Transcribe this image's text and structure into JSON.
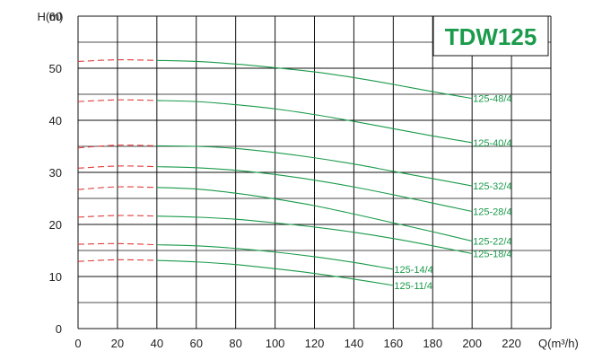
{
  "chart_data": {
    "type": "line",
    "title": "TDW125",
    "xlabel": "Q(m³/h)",
    "ylabel": "H(m)",
    "xlim": [
      0,
      240
    ],
    "ylim": [
      0,
      60
    ],
    "x_ticks": [
      "0",
      "20",
      "40",
      "60",
      "80",
      "100",
      "120",
      "140",
      "160",
      "180",
      "200",
      "220"
    ],
    "y_ticks": [
      "0",
      "10",
      "20",
      "30",
      "40",
      "50",
      "60"
    ],
    "grid": true,
    "colors": {
      "curve": "#1a9a4a",
      "dashed": "#e23c3c",
      "title": "#1a9a4a",
      "grid": "#111111"
    },
    "series": [
      {
        "name": "125-48/4",
        "dashed": [
          [
            0,
            51.3
          ],
          [
            40,
            51.5
          ]
        ],
        "x": [
          40,
          60,
          80,
          100,
          120,
          140,
          160,
          180,
          200
        ],
        "y": [
          51.5,
          51.3,
          50.8,
          50.1,
          49.3,
          48.2,
          46.9,
          45.5,
          44.2
        ]
      },
      {
        "name": "125-40/4",
        "dashed": [
          [
            0,
            43.6
          ],
          [
            40,
            43.8
          ]
        ],
        "x": [
          40,
          60,
          80,
          100,
          120,
          140,
          160,
          180,
          200
        ],
        "y": [
          43.8,
          43.6,
          43.0,
          42.2,
          41.1,
          39.8,
          38.4,
          37.0,
          35.7
        ]
      },
      {
        "name": "125-32/4",
        "dashed": [
          [
            0,
            34.7
          ],
          [
            40,
            35.1
          ]
        ],
        "x": [
          40,
          60,
          80,
          100,
          120,
          140,
          160,
          180,
          200
        ],
        "y": [
          35.1,
          35.0,
          34.6,
          33.8,
          32.8,
          31.6,
          30.2,
          28.8,
          27.4
        ]
      },
      {
        "name": "125-28/4",
        "dashed": [
          [
            0,
            30.8
          ],
          [
            40,
            31.1
          ]
        ],
        "x": [
          40,
          60,
          80,
          100,
          120,
          140,
          160,
          180,
          200
        ],
        "y": [
          31.1,
          30.9,
          30.4,
          29.6,
          28.5,
          27.2,
          25.7,
          24.1,
          22.5
        ]
      },
      {
        "name": "125-22/4",
        "dashed": [
          [
            0,
            26.7
          ],
          [
            40,
            27.1
          ]
        ],
        "x": [
          40,
          60,
          80,
          100,
          120,
          140,
          160,
          180,
          200
        ],
        "y": [
          27.1,
          26.8,
          26.0,
          24.9,
          23.6,
          22.0,
          20.3,
          18.6,
          16.8
        ]
      },
      {
        "name": "125-18/4",
        "dashed": [
          [
            0,
            21.4
          ],
          [
            40,
            21.6
          ]
        ],
        "x": [
          40,
          60,
          80,
          100,
          120,
          140,
          160,
          180,
          200
        ],
        "y": [
          21.6,
          21.4,
          21.0,
          20.3,
          19.5,
          18.5,
          17.3,
          15.9,
          14.4
        ]
      },
      {
        "name": "125-14/4",
        "dashed": [
          [
            0,
            16.2
          ],
          [
            40,
            16.1
          ]
        ],
        "x": [
          40,
          60,
          80,
          100,
          120,
          140,
          160
        ],
        "y": [
          16.1,
          15.9,
          15.4,
          14.7,
          13.8,
          12.7,
          11.4
        ]
      },
      {
        "name": "125-11/4",
        "dashed": [
          [
            0,
            12.9
          ],
          [
            40,
            13.1
          ]
        ],
        "x": [
          40,
          60,
          80,
          100,
          120,
          140,
          160
        ],
        "y": [
          13.1,
          12.8,
          12.3,
          11.5,
          10.6,
          9.5,
          8.3
        ]
      }
    ]
  }
}
